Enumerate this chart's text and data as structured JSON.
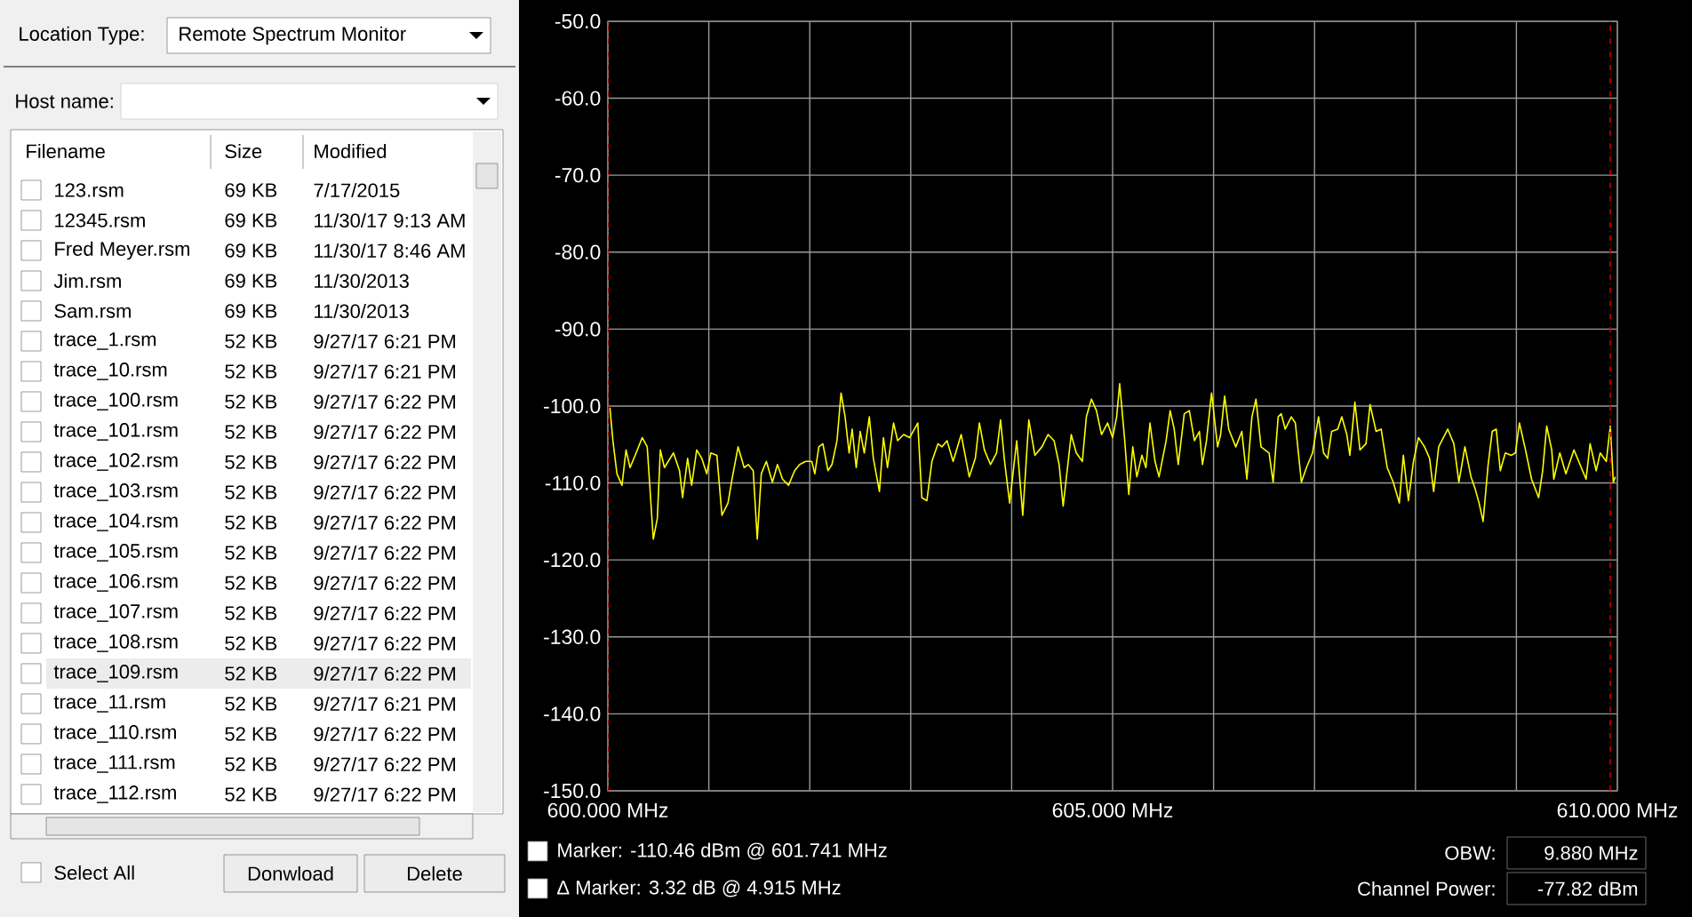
{
  "chart_data": {
    "type": "line",
    "color": "#ffff00",
    "xlim": [
      600,
      610
    ],
    "ylim": [
      -150,
      -50
    ],
    "xticks": [
      {
        "value": 600,
        "label": "600.000 MHz"
      },
      {
        "value": 601,
        "label": null
      },
      {
        "value": 602,
        "label": null
      },
      {
        "value": 603,
        "label": null
      },
      {
        "value": 604,
        "label": null
      },
      {
        "value": 605,
        "label": "605.000 MHz"
      },
      {
        "value": 606,
        "label": null
      },
      {
        "value": 607,
        "label": null
      },
      {
        "value": 608,
        "label": null
      },
      {
        "value": 609,
        "label": null
      },
      {
        "value": 610,
        "label": "610.000 MHz"
      }
    ],
    "yticks": [
      {
        "value": -50,
        "label": "-50.0"
      },
      {
        "value": -60,
        "label": "-60.0"
      },
      {
        "value": -70,
        "label": "-70.0"
      },
      {
        "value": -80,
        "label": "-80.0"
      },
      {
        "value": -90,
        "label": "-90.0"
      },
      {
        "value": -100,
        "label": "-100.0"
      },
      {
        "value": -110,
        "label": "-110.0"
      },
      {
        "value": -120,
        "label": "-120.0"
      },
      {
        "value": -130,
        "label": "-130.0"
      },
      {
        "value": -140,
        "label": "-140.0"
      },
      {
        "value": -150,
        "label": "-150.0"
      }
    ],
    "grid": true,
    "ref_lines": [
      {
        "axis": "x",
        "value": 600.0,
        "color": "#cc0000",
        "line_style": "dashed"
      },
      {
        "axis": "x",
        "value": 609.93,
        "color": "#cc0000",
        "line_style": "dashed"
      }
    ],
    "x": [
      600.02,
      600.05,
      600.09,
      600.14,
      600.18,
      600.22,
      600.28,
      600.34,
      600.39,
      600.45,
      600.49,
      600.52,
      600.56,
      600.65,
      600.71,
      600.74,
      600.79,
      600.83,
      600.88,
      600.93,
      600.98,
      601.02,
      601.08,
      601.13,
      601.19,
      601.23,
      601.29,
      601.35,
      601.39,
      601.44,
      601.48,
      601.52,
      601.57,
      601.63,
      601.68,
      601.73,
      601.79,
      601.85,
      601.9,
      601.96,
      602.02,
      602.05,
      602.09,
      602.13,
      602.18,
      602.22,
      602.27,
      602.31,
      602.35,
      602.39,
      602.42,
      602.46,
      602.5,
      602.54,
      602.59,
      602.63,
      602.69,
      602.73,
      602.77,
      602.83,
      602.87,
      602.93,
      602.99,
      603.07,
      603.11,
      603.16,
      603.21,
      603.27,
      603.31,
      603.36,
      603.42,
      603.5,
      603.58,
      603.64,
      603.68,
      603.73,
      603.79,
      603.85,
      603.89,
      603.93,
      603.98,
      604.05,
      604.11,
      604.17,
      604.23,
      604.3,
      604.36,
      604.42,
      604.47,
      604.51,
      604.59,
      604.64,
      604.7,
      604.74,
      604.79,
      604.84,
      604.89,
      604.95,
      605.0,
      605.04,
      605.07,
      605.12,
      605.16,
      605.2,
      605.24,
      605.29,
      605.33,
      605.37,
      605.42,
      605.46,
      605.53,
      605.57,
      605.61,
      605.65,
      605.71,
      605.76,
      605.81,
      605.86,
      605.89,
      605.93,
      605.98,
      606.04,
      606.07,
      606.11,
      606.15,
      606.22,
      606.28,
      606.33,
      606.38,
      606.42,
      606.47,
      606.55,
      606.59,
      606.64,
      606.67,
      606.71,
      606.77,
      606.81,
      606.87,
      606.92,
      606.98,
      607.04,
      607.09,
      607.13,
      607.17,
      607.23,
      607.27,
      607.32,
      607.35,
      607.4,
      607.45,
      607.51,
      607.55,
      607.61,
      607.66,
      607.72,
      607.78,
      607.84,
      607.88,
      607.93,
      607.98,
      608.03,
      608.09,
      608.14,
      608.18,
      608.23,
      608.32,
      608.38,
      608.43,
      608.49,
      608.55,
      608.59,
      608.63,
      608.67,
      608.72,
      608.76,
      608.8,
      608.84,
      608.89,
      608.95,
      608.99,
      609.03,
      609.09,
      609.15,
      609.22,
      609.26,
      609.3,
      609.35,
      609.37,
      609.43,
      609.49,
      609.57,
      609.63,
      609.69,
      609.73,
      609.79,
      609.83,
      609.89,
      609.93,
      609.96,
      609.98
    ],
    "values": [
      -100.2,
      -104.5,
      -108.8,
      -110.3,
      -105.7,
      -108.0,
      -106.1,
      -104.1,
      -105.3,
      -117.3,
      -114.6,
      -105.7,
      -108.0,
      -106.1,
      -108.4,
      -111.9,
      -106.8,
      -110.3,
      -105.7,
      -106.8,
      -108.8,
      -106.1,
      -106.4,
      -114.2,
      -112.6,
      -109.5,
      -105.3,
      -108.0,
      -107.6,
      -108.4,
      -117.3,
      -108.8,
      -107.2,
      -109.9,
      -107.6,
      -109.5,
      -110.3,
      -108.4,
      -107.6,
      -107.2,
      -107.2,
      -108.8,
      -105.3,
      -104.9,
      -108.4,
      -107.6,
      -104.5,
      -98.3,
      -101.4,
      -106.1,
      -103.0,
      -108.0,
      -103.3,
      -106.1,
      -101.4,
      -106.8,
      -111.1,
      -104.1,
      -108.0,
      -102.2,
      -104.5,
      -103.7,
      -104.1,
      -102.2,
      -111.9,
      -112.3,
      -107.2,
      -104.9,
      -105.3,
      -104.5,
      -107.2,
      -103.7,
      -109.2,
      -106.8,
      -102.2,
      -105.7,
      -107.6,
      -106.1,
      -101.8,
      -107.2,
      -112.6,
      -104.5,
      -114.2,
      -101.8,
      -106.4,
      -105.3,
      -103.7,
      -104.5,
      -107.6,
      -113.0,
      -103.7,
      -106.1,
      -107.2,
      -101.4,
      -99.1,
      -100.6,
      -103.7,
      -102.2,
      -104.1,
      -101.4,
      -97.1,
      -104.5,
      -111.5,
      -105.3,
      -109.2,
      -106.4,
      -108.0,
      -102.2,
      -107.2,
      -109.2,
      -104.5,
      -100.6,
      -103.0,
      -107.6,
      -101.0,
      -100.6,
      -104.5,
      -103.3,
      -107.6,
      -104.5,
      -98.3,
      -105.3,
      -103.7,
      -98.7,
      -103.0,
      -105.3,
      -103.3,
      -109.5,
      -101.4,
      -99.1,
      -105.3,
      -106.1,
      -109.9,
      -101.4,
      -101.0,
      -103.0,
      -101.4,
      -102.2,
      -109.9,
      -108.0,
      -106.1,
      -101.4,
      -106.1,
      -106.8,
      -103.3,
      -103.0,
      -101.4,
      -103.7,
      -106.4,
      -99.5,
      -105.7,
      -104.9,
      -99.8,
      -103.3,
      -103.0,
      -108.0,
      -109.9,
      -112.6,
      -106.4,
      -112.3,
      -107.2,
      -104.1,
      -105.3,
      -106.8,
      -111.1,
      -105.3,
      -103.0,
      -104.9,
      -109.9,
      -105.3,
      -109.2,
      -110.7,
      -112.6,
      -115.0,
      -107.6,
      -103.3,
      -103.0,
      -108.4,
      -106.1,
      -106.4,
      -106.1,
      -102.2,
      -105.7,
      -109.5,
      -111.9,
      -108.4,
      -102.6,
      -105.7,
      -109.5,
      -106.1,
      -108.8,
      -105.7,
      -107.6,
      -109.5,
      -104.9,
      -108.4,
      -106.1,
      -107.2,
      -102.6,
      -109.9,
      -109.2
    ],
    "annotations": [
      "Location Type:",
      "Remote Spectrum Monitor",
      "Host name:",
      "Filename",
      "Size",
      "Modified",
      "123.rsm",
      "69 KB",
      "7/17/2015",
      "12345.rsm",
      "69 KB",
      "11/30/17 9:13 AM",
      "Fred Meyer.rsm",
      "69 KB",
      "11/30/17 8:46 AM",
      "Jim.rsm",
      "69 KB",
      "11/30/2013",
      "Sam.rsm",
      "69 KB",
      "11/30/2013",
      "trace_1.rsm",
      "52 KB",
      "9/27/17 6:21 PM",
      "trace_10.rsm",
      "52 KB",
      "9/27/17 6:21 PM",
      "trace_100.rsm",
      "52 KB",
      "9/27/17 6:22 PM",
      "trace_101.rsm",
      "52 KB",
      "9/27/17 6:22 PM",
      "trace_102.rsm",
      "52 KB",
      "9/27/17 6:22 PM",
      "trace_103.rsm",
      "52 KB",
      "9/27/17 6:22 PM",
      "trace_104.rsm",
      "52 KB",
      "9/27/17 6:22 PM",
      "trace_105.rsm",
      "52 KB",
      "9/27/17 6:22 PM",
      "trace_106.rsm",
      "52 KB",
      "9/27/17 6:22 PM",
      "trace_107.rsm",
      "52 KB",
      "9/27/17 6:22 PM",
      "trace_108.rsm",
      "52 KB",
      "9/27/17 6:22 PM",
      "trace_109.rsm",
      "52 KB",
      "9/27/17 6:22 PM",
      "trace_11.rsm",
      "52 KB",
      "9/27/17 6:21 PM",
      "trace_110.rsm",
      "52 KB",
      "9/27/17 6:22 PM",
      "trace_111.rsm",
      "52 KB",
      "9/27/17 6:22 PM",
      "trace_112.rsm",
      "52 KB",
      "9/27/17 6:22 PM",
      "Select All",
      "Donwload",
      "Delete",
      "Marker:  -110.46 dBm @ 601.741 MHz",
      "Δ Marker:  3.32 dB @ 4.915 MHz",
      "OBW:",
      "9.880 MHz",
      "Channel Power:",
      "-77.82 dBm"
    ]
  }
}
